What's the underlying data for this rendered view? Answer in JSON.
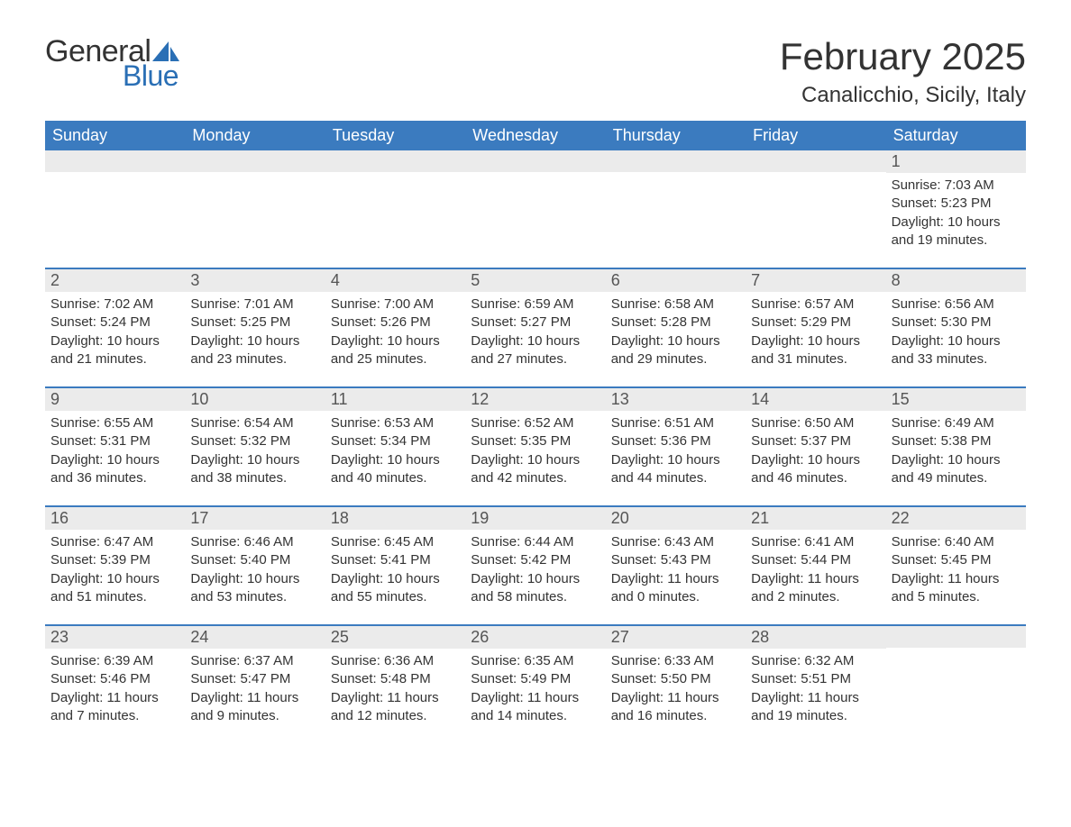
{
  "brand": {
    "general": "General",
    "blue": "Blue"
  },
  "colors": {
    "header_bg": "#3b7bbf",
    "header_text": "#ffffff",
    "row_border": "#3b7bbf",
    "daynum_bg": "#ebebeb",
    "text": "#333333",
    "logo_blue": "#2a6fb5"
  },
  "title": "February 2025",
  "location": "Canalicchio, Sicily, Italy",
  "layout": {
    "columns": 7,
    "rows": 5
  },
  "weekdays": [
    "Sunday",
    "Monday",
    "Tuesday",
    "Wednesday",
    "Thursday",
    "Friday",
    "Saturday"
  ],
  "labels": {
    "sunrise": "Sunrise:",
    "sunset": "Sunset:",
    "daylight": "Daylight:"
  },
  "weeks": [
    [
      null,
      null,
      null,
      null,
      null,
      null,
      {
        "n": "1",
        "sr": "7:03 AM",
        "ss": "5:23 PM",
        "dl": "10 hours and 19 minutes."
      }
    ],
    [
      {
        "n": "2",
        "sr": "7:02 AM",
        "ss": "5:24 PM",
        "dl": "10 hours and 21 minutes."
      },
      {
        "n": "3",
        "sr": "7:01 AM",
        "ss": "5:25 PM",
        "dl": "10 hours and 23 minutes."
      },
      {
        "n": "4",
        "sr": "7:00 AM",
        "ss": "5:26 PM",
        "dl": "10 hours and 25 minutes."
      },
      {
        "n": "5",
        "sr": "6:59 AM",
        "ss": "5:27 PM",
        "dl": "10 hours and 27 minutes."
      },
      {
        "n": "6",
        "sr": "6:58 AM",
        "ss": "5:28 PM",
        "dl": "10 hours and 29 minutes."
      },
      {
        "n": "7",
        "sr": "6:57 AM",
        "ss": "5:29 PM",
        "dl": "10 hours and 31 minutes."
      },
      {
        "n": "8",
        "sr": "6:56 AM",
        "ss": "5:30 PM",
        "dl": "10 hours and 33 minutes."
      }
    ],
    [
      {
        "n": "9",
        "sr": "6:55 AM",
        "ss": "5:31 PM",
        "dl": "10 hours and 36 minutes."
      },
      {
        "n": "10",
        "sr": "6:54 AM",
        "ss": "5:32 PM",
        "dl": "10 hours and 38 minutes."
      },
      {
        "n": "11",
        "sr": "6:53 AM",
        "ss": "5:34 PM",
        "dl": "10 hours and 40 minutes."
      },
      {
        "n": "12",
        "sr": "6:52 AM",
        "ss": "5:35 PM",
        "dl": "10 hours and 42 minutes."
      },
      {
        "n": "13",
        "sr": "6:51 AM",
        "ss": "5:36 PM",
        "dl": "10 hours and 44 minutes."
      },
      {
        "n": "14",
        "sr": "6:50 AM",
        "ss": "5:37 PM",
        "dl": "10 hours and 46 minutes."
      },
      {
        "n": "15",
        "sr": "6:49 AM",
        "ss": "5:38 PM",
        "dl": "10 hours and 49 minutes."
      }
    ],
    [
      {
        "n": "16",
        "sr": "6:47 AM",
        "ss": "5:39 PM",
        "dl": "10 hours and 51 minutes."
      },
      {
        "n": "17",
        "sr": "6:46 AM",
        "ss": "5:40 PM",
        "dl": "10 hours and 53 minutes."
      },
      {
        "n": "18",
        "sr": "6:45 AM",
        "ss": "5:41 PM",
        "dl": "10 hours and 55 minutes."
      },
      {
        "n": "19",
        "sr": "6:44 AM",
        "ss": "5:42 PM",
        "dl": "10 hours and 58 minutes."
      },
      {
        "n": "20",
        "sr": "6:43 AM",
        "ss": "5:43 PM",
        "dl": "11 hours and 0 minutes."
      },
      {
        "n": "21",
        "sr": "6:41 AM",
        "ss": "5:44 PM",
        "dl": "11 hours and 2 minutes."
      },
      {
        "n": "22",
        "sr": "6:40 AM",
        "ss": "5:45 PM",
        "dl": "11 hours and 5 minutes."
      }
    ],
    [
      {
        "n": "23",
        "sr": "6:39 AM",
        "ss": "5:46 PM",
        "dl": "11 hours and 7 minutes."
      },
      {
        "n": "24",
        "sr": "6:37 AM",
        "ss": "5:47 PM",
        "dl": "11 hours and 9 minutes."
      },
      {
        "n": "25",
        "sr": "6:36 AM",
        "ss": "5:48 PM",
        "dl": "11 hours and 12 minutes."
      },
      {
        "n": "26",
        "sr": "6:35 AM",
        "ss": "5:49 PM",
        "dl": "11 hours and 14 minutes."
      },
      {
        "n": "27",
        "sr": "6:33 AM",
        "ss": "5:50 PM",
        "dl": "11 hours and 16 minutes."
      },
      {
        "n": "28",
        "sr": "6:32 AM",
        "ss": "5:51 PM",
        "dl": "11 hours and 19 minutes."
      },
      null
    ]
  ]
}
